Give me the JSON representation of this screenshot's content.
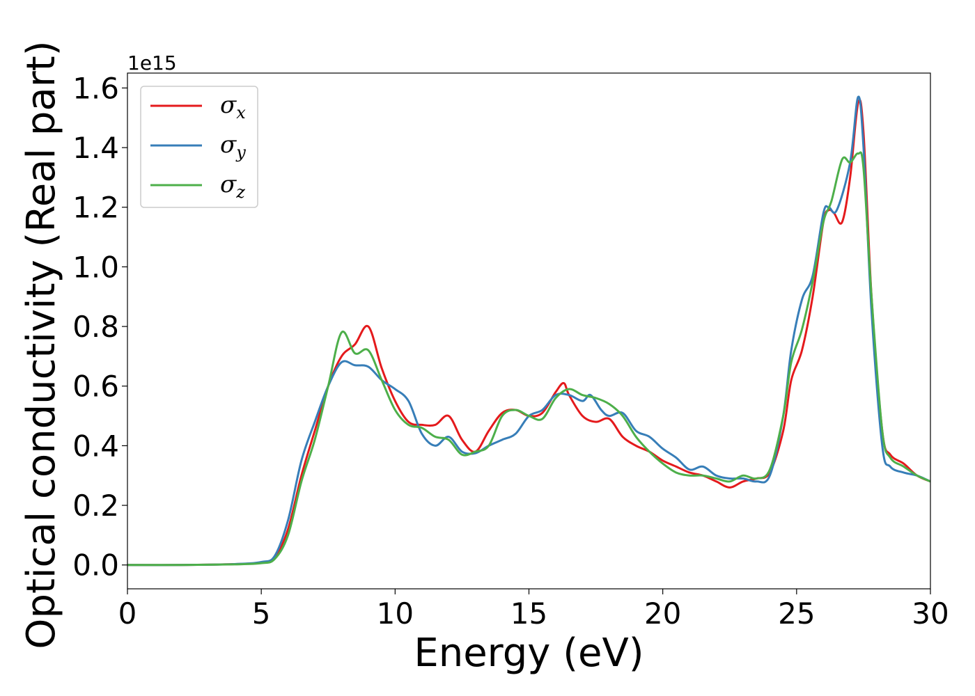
{
  "chart_data": {
    "type": "line",
    "xlabel": "Energy (eV)",
    "ylabel": "Optical conductivity (Real part)",
    "y_offset_label": "1e15",
    "xlim": [
      0,
      30
    ],
    "ylim": [
      -0.08,
      1.65
    ],
    "x_ticks": [
      0,
      5,
      10,
      15,
      20,
      25,
      30
    ],
    "x_tick_labels": [
      "0",
      "5",
      "10",
      "15",
      "20",
      "25",
      "30"
    ],
    "y_ticks": [
      0.0,
      0.2,
      0.4,
      0.6,
      0.8,
      1.0,
      1.2,
      1.4,
      1.6
    ],
    "y_tick_labels": [
      "0.0",
      "0.2",
      "0.4",
      "0.6",
      "0.8",
      "1.0",
      "1.2",
      "1.4",
      "1.6"
    ],
    "grid": false,
    "legend_position": "top-left",
    "series": [
      {
        "name": "σx",
        "name_base": "σ",
        "name_sub": "x",
        "color": "#e41a1c",
        "points": [
          [
            0,
            0
          ],
          [
            2,
            0
          ],
          [
            4,
            0.003
          ],
          [
            5,
            0.008
          ],
          [
            5.5,
            0.025
          ],
          [
            6,
            0.12
          ],
          [
            6.5,
            0.3
          ],
          [
            7,
            0.45
          ],
          [
            7.5,
            0.6
          ],
          [
            8,
            0.7
          ],
          [
            8.5,
            0.74
          ],
          [
            9,
            0.8
          ],
          [
            9.5,
            0.66
          ],
          [
            10,
            0.55
          ],
          [
            10.5,
            0.48
          ],
          [
            11,
            0.47
          ],
          [
            11.5,
            0.47
          ],
          [
            12,
            0.5
          ],
          [
            12.5,
            0.42
          ],
          [
            13,
            0.38
          ],
          [
            13.5,
            0.45
          ],
          [
            14,
            0.51
          ],
          [
            14.5,
            0.52
          ],
          [
            15,
            0.5
          ],
          [
            15.5,
            0.51
          ],
          [
            16,
            0.58
          ],
          [
            16.3,
            0.61
          ],
          [
            16.5,
            0.57
          ],
          [
            17,
            0.5
          ],
          [
            17.5,
            0.48
          ],
          [
            18,
            0.49
          ],
          [
            18.5,
            0.43
          ],
          [
            19,
            0.4
          ],
          [
            19.5,
            0.38
          ],
          [
            20,
            0.35
          ],
          [
            20.5,
            0.33
          ],
          [
            21,
            0.31
          ],
          [
            21.5,
            0.3
          ],
          [
            22,
            0.28
          ],
          [
            22.5,
            0.26
          ],
          [
            23,
            0.28
          ],
          [
            23.5,
            0.29
          ],
          [
            24,
            0.31
          ],
          [
            24.5,
            0.45
          ],
          [
            24.8,
            0.62
          ],
          [
            25.2,
            0.72
          ],
          [
            25.6,
            0.9
          ],
          [
            26,
            1.15
          ],
          [
            26.2,
            1.19
          ],
          [
            26.4,
            1.18
          ],
          [
            26.7,
            1.15
          ],
          [
            27,
            1.3
          ],
          [
            27.3,
            1.55
          ],
          [
            27.5,
            1.45
          ],
          [
            27.8,
            0.9
          ],
          [
            28.2,
            0.45
          ],
          [
            28.5,
            0.37
          ],
          [
            29,
            0.34
          ],
          [
            29.5,
            0.3
          ],
          [
            30,
            0.28
          ]
        ]
      },
      {
        "name": "σy",
        "name_base": "σ",
        "name_sub": "y",
        "color": "#377eb8",
        "points": [
          [
            0,
            0
          ],
          [
            2,
            0
          ],
          [
            4,
            0.003
          ],
          [
            5,
            0.01
          ],
          [
            5.5,
            0.03
          ],
          [
            6,
            0.15
          ],
          [
            6.5,
            0.35
          ],
          [
            7,
            0.48
          ],
          [
            7.5,
            0.6
          ],
          [
            8,
            0.68
          ],
          [
            8.5,
            0.67
          ],
          [
            9,
            0.665
          ],
          [
            9.5,
            0.62
          ],
          [
            10,
            0.59
          ],
          [
            10.5,
            0.55
          ],
          [
            11,
            0.44
          ],
          [
            11.5,
            0.4
          ],
          [
            12,
            0.43
          ],
          [
            12.5,
            0.38
          ],
          [
            13,
            0.375
          ],
          [
            13.5,
            0.4
          ],
          [
            14,
            0.42
          ],
          [
            14.5,
            0.44
          ],
          [
            15,
            0.5
          ],
          [
            15.5,
            0.52
          ],
          [
            16,
            0.57
          ],
          [
            16.5,
            0.57
          ],
          [
            17,
            0.55
          ],
          [
            17.3,
            0.57
          ],
          [
            17.7,
            0.52
          ],
          [
            18,
            0.5
          ],
          [
            18.5,
            0.51
          ],
          [
            19,
            0.45
          ],
          [
            19.5,
            0.43
          ],
          [
            20,
            0.39
          ],
          [
            20.5,
            0.36
          ],
          [
            21,
            0.32
          ],
          [
            21.5,
            0.33
          ],
          [
            22,
            0.3
          ],
          [
            22.5,
            0.29
          ],
          [
            23,
            0.29
          ],
          [
            23.5,
            0.28
          ],
          [
            24,
            0.3
          ],
          [
            24.5,
            0.5
          ],
          [
            24.8,
            0.72
          ],
          [
            25.2,
            0.89
          ],
          [
            25.6,
            0.97
          ],
          [
            26,
            1.18
          ],
          [
            26.2,
            1.2
          ],
          [
            26.5,
            1.19
          ],
          [
            27,
            1.35
          ],
          [
            27.3,
            1.57
          ],
          [
            27.5,
            1.4
          ],
          [
            27.8,
            0.85
          ],
          [
            28.2,
            0.4
          ],
          [
            28.5,
            0.33
          ],
          [
            29,
            0.31
          ],
          [
            29.5,
            0.3
          ],
          [
            30,
            0.28
          ]
        ]
      },
      {
        "name": "σz",
        "name_base": "σ",
        "name_sub": "z",
        "color": "#4daf4a",
        "points": [
          [
            0,
            0
          ],
          [
            2,
            0
          ],
          [
            4,
            0.002
          ],
          [
            5,
            0.006
          ],
          [
            5.5,
            0.02
          ],
          [
            6,
            0.1
          ],
          [
            6.5,
            0.28
          ],
          [
            7,
            0.42
          ],
          [
            7.5,
            0.6
          ],
          [
            8,
            0.78
          ],
          [
            8.5,
            0.71
          ],
          [
            9,
            0.72
          ],
          [
            9.5,
            0.62
          ],
          [
            10,
            0.52
          ],
          [
            10.5,
            0.47
          ],
          [
            11,
            0.46
          ],
          [
            11.5,
            0.43
          ],
          [
            12,
            0.42
          ],
          [
            12.5,
            0.37
          ],
          [
            13,
            0.38
          ],
          [
            13.5,
            0.4
          ],
          [
            14,
            0.5
          ],
          [
            14.5,
            0.52
          ],
          [
            15,
            0.5
          ],
          [
            15.5,
            0.49
          ],
          [
            16,
            0.56
          ],
          [
            16.5,
            0.59
          ],
          [
            17,
            0.57
          ],
          [
            17.5,
            0.56
          ],
          [
            18,
            0.54
          ],
          [
            18.5,
            0.5
          ],
          [
            19,
            0.43
          ],
          [
            19.5,
            0.38
          ],
          [
            20,
            0.34
          ],
          [
            20.5,
            0.31
          ],
          [
            21,
            0.3
          ],
          [
            21.5,
            0.3
          ],
          [
            22,
            0.29
          ],
          [
            22.5,
            0.28
          ],
          [
            23,
            0.3
          ],
          [
            23.5,
            0.29
          ],
          [
            24,
            0.32
          ],
          [
            24.5,
            0.5
          ],
          [
            24.8,
            0.68
          ],
          [
            25.2,
            0.79
          ],
          [
            25.6,
            0.95
          ],
          [
            26,
            1.15
          ],
          [
            26.3,
            1.22
          ],
          [
            26.7,
            1.36
          ],
          [
            27,
            1.35
          ],
          [
            27.3,
            1.38
          ],
          [
            27.5,
            1.33
          ],
          [
            27.8,
            0.9
          ],
          [
            28.2,
            0.45
          ],
          [
            28.5,
            0.36
          ],
          [
            29,
            0.33
          ],
          [
            29.5,
            0.3
          ],
          [
            30,
            0.28
          ]
        ]
      }
    ]
  }
}
